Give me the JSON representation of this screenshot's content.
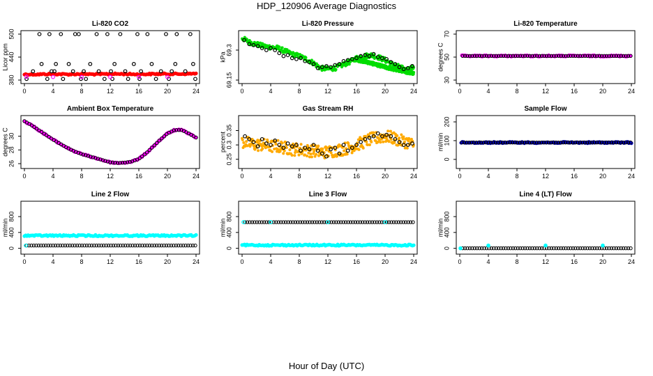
{
  "figure": {
    "title": "HDP_120906  Average Diagnostics",
    "xlabel": "Hour of Day (UTC)"
  },
  "chart_data": [
    {
      "type": "scatter",
      "title": "Li-820 CO2",
      "ylabel": "Licor ppm",
      "xlim": [
        0,
        24
      ],
      "xticks": [
        0,
        4,
        8,
        12,
        16,
        20,
        24
      ],
      "ylim": [
        380,
        500
      ],
      "yticks": [
        380,
        440,
        500
      ],
      "series": [
        {
          "name": "co2-dense",
          "color": "#ff0000",
          "style": "dense",
          "x": [
            0,
            2,
            4,
            6,
            8,
            10,
            12,
            14,
            16,
            18,
            20,
            22,
            24
          ],
          "y": [
            395,
            395,
            396,
            395,
            396,
            395,
            396,
            396,
            395,
            396,
            396,
            396,
            397
          ]
        },
        {
          "name": "co2-open",
          "color": "#000000",
          "style": "open",
          "x": [
            0.3,
            1.2,
            2.1,
            2.4,
            3.2,
            3.5,
            3.8,
            4.2,
            4.4,
            5.1,
            5.4,
            6.2,
            6.8,
            7.1,
            7.6,
            7.9,
            8.3,
            8.6,
            9.2,
            10.1,
            10.4,
            11.2,
            11.6,
            12.1,
            12.3,
            12.6,
            13.4,
            14.1,
            14.5,
            15.3,
            15.8,
            16.1,
            16.3,
            17.2,
            17.8,
            18.4,
            19.1,
            19.8,
            20.2,
            20.6,
            21.1,
            21.3,
            22.5,
            23.2,
            23.6,
            23.9
          ],
          "y": [
            383,
            403,
            500,
            422,
            383,
            500,
            403,
            403,
            422,
            500,
            383,
            422,
            403,
            500,
            500,
            383,
            403,
            383,
            422,
            500,
            403,
            383,
            500,
            403,
            383,
            422,
            500,
            403,
            383,
            422,
            500,
            383,
            403,
            500,
            422,
            383,
            403,
            500,
            383,
            403,
            422,
            500,
            403,
            500,
            422,
            383
          ]
        },
        {
          "name": "co2-magenta",
          "color": "#ff00ff",
          "style": "open",
          "x": [
            0.3,
            4.0,
            8.0,
            12.0,
            16.0,
            20.0
          ],
          "y": [
            389,
            388,
            388,
            388,
            388,
            388
          ]
        }
      ]
    },
    {
      "type": "scatter",
      "title": "Li-820 Pressure",
      "ylabel": "kPa",
      "xlim": [
        0,
        24
      ],
      "xticks": [
        0,
        4,
        8,
        12,
        16,
        20,
        24
      ],
      "ylim": [
        69.15,
        69.38
      ],
      "yticks": [
        69.15,
        69.3
      ],
      "series": [
        {
          "name": "pressure-band",
          "color": "#00dd00",
          "style": "band",
          "spread": 0.012,
          "x": [
            0,
            1,
            2,
            3,
            4,
            5,
            6,
            7,
            8,
            9,
            10,
            11,
            12,
            13,
            14,
            15,
            16,
            17,
            18,
            19,
            20,
            21,
            22,
            23,
            24
          ],
          "y": [
            69.36,
            69.34,
            69.33,
            69.32,
            69.315,
            69.31,
            69.295,
            69.28,
            69.27,
            69.255,
            69.235,
            69.21,
            69.205,
            69.21,
            69.225,
            69.24,
            69.26,
            69.27,
            69.275,
            69.265,
            69.25,
            69.23,
            69.215,
            69.2,
            69.215
          ]
        },
        {
          "name": "pressure-band-low",
          "color": "#00dd00",
          "style": "band",
          "spread": 0.008,
          "x": [
            16,
            17,
            18,
            19,
            20,
            21,
            22,
            23,
            24
          ],
          "y": [
            69.25,
            69.245,
            69.235,
            69.225,
            69.215,
            69.205,
            69.2,
            69.19,
            69.185
          ]
        },
        {
          "name": "pressure-avg",
          "color": "#000000",
          "style": "open",
          "x": [
            0.3,
            1.0,
            1.6,
            2.2,
            2.8,
            3.4,
            4.0,
            4.6,
            5.2,
            5.8,
            6.4,
            7.0,
            7.6,
            8.2,
            8.8,
            9.4,
            10.0,
            10.6,
            11.2,
            11.8,
            12.4,
            13.0,
            13.6,
            14.2,
            14.8,
            15.4,
            16.0,
            16.6,
            17.2,
            17.8,
            18.4,
            19.0,
            19.6,
            20.2,
            20.8,
            21.4,
            22.0,
            22.6,
            23.2,
            23.8
          ],
          "y": [
            69.35,
            69.33,
            69.325,
            69.32,
            69.31,
            69.3,
            69.31,
            69.3,
            69.285,
            69.27,
            69.275,
            69.26,
            69.255,
            69.26,
            69.245,
            69.24,
            69.23,
            69.21,
            69.215,
            69.22,
            69.215,
            69.225,
            69.23,
            69.245,
            69.25,
            69.255,
            69.26,
            69.27,
            69.275,
            69.27,
            69.28,
            69.265,
            69.26,
            69.255,
            69.24,
            69.23,
            69.215,
            69.205,
            69.21,
            69.22
          ]
        }
      ]
    },
    {
      "type": "scatter",
      "title": "Li-820 Temperature",
      "ylabel": "degrees C",
      "xlim": [
        0,
        24
      ],
      "xticks": [
        0,
        4,
        8,
        12,
        16,
        20,
        24
      ],
      "ylim": [
        30,
        70
      ],
      "yticks": [
        30,
        50,
        70
      ],
      "series": [
        {
          "name": "licor-temp-dense",
          "color": "#ff00ff",
          "style": "dense",
          "x": [
            0.3,
            23.9
          ],
          "y": [
            51,
            51
          ]
        },
        {
          "name": "licor-temp-avg",
          "color": "#000000",
          "style": "openline",
          "count": 70,
          "x": [
            0.4,
            23.9
          ],
          "y": [
            51,
            51
          ]
        }
      ]
    },
    {
      "type": "scatter",
      "title": "Ambient Box Temperature",
      "ylabel": "degrees C",
      "xlim": [
        0,
        24
      ],
      "xticks": [
        0,
        4,
        8,
        12,
        16,
        20,
        24
      ],
      "ylim": [
        25.8,
        32.5
      ],
      "yticks": [
        26,
        28,
        30
      ],
      "series": [
        {
          "name": "box-temp-dense",
          "color": "#ff00ff",
          "style": "dense",
          "x": [
            0,
            1,
            2,
            3,
            4,
            5,
            6,
            7,
            8,
            9,
            10,
            11,
            12,
            13,
            14,
            15,
            16,
            17,
            18,
            19,
            20,
            21,
            22,
            23,
            24
          ],
          "y": [
            32.2,
            31.6,
            30.9,
            30.2,
            29.5,
            28.9,
            28.3,
            27.8,
            27.4,
            27.1,
            26.8,
            26.5,
            26.2,
            26.1,
            26.15,
            26.3,
            26.7,
            27.5,
            28.5,
            29.5,
            30.4,
            30.9,
            30.9,
            30.4,
            29.8
          ]
        },
        {
          "name": "box-temp-avg",
          "color": "#000000",
          "style": "openline",
          "count": 70,
          "x": [
            0,
            1,
            2,
            3,
            4,
            5,
            6,
            7,
            8,
            9,
            10,
            11,
            12,
            13,
            14,
            15,
            16,
            17,
            18,
            19,
            20,
            21,
            22,
            23,
            24
          ],
          "y": [
            32.2,
            31.6,
            30.9,
            30.2,
            29.5,
            28.9,
            28.3,
            27.8,
            27.4,
            27.1,
            26.8,
            26.5,
            26.2,
            26.1,
            26.15,
            26.3,
            26.7,
            27.5,
            28.5,
            29.5,
            30.4,
            30.9,
            30.9,
            30.4,
            29.8
          ]
        }
      ]
    },
    {
      "type": "scatter",
      "title": "Gas Stream RH",
      "ylabel": "percent",
      "xlim": [
        0,
        24
      ],
      "xticks": [
        0,
        4,
        8,
        12,
        16,
        20,
        24
      ],
      "ylim": [
        0.23,
        0.39
      ],
      "yticks": [
        0.25,
        0.3,
        0.35
      ],
      "series": [
        {
          "name": "rh-band",
          "color": "#ffaa00",
          "style": "band",
          "spread": 0.022,
          "x": [
            0,
            1,
            2,
            3,
            4,
            5,
            6,
            7,
            8,
            9,
            10,
            11,
            12,
            13,
            14,
            15,
            16,
            17,
            18,
            19,
            20,
            21,
            22,
            23,
            24
          ],
          "y": [
            0.31,
            0.305,
            0.3,
            0.3,
            0.295,
            0.295,
            0.29,
            0.285,
            0.285,
            0.28,
            0.28,
            0.275,
            0.275,
            0.28,
            0.285,
            0.29,
            0.3,
            0.31,
            0.32,
            0.325,
            0.33,
            0.325,
            0.315,
            0.31,
            0.3
          ]
        },
        {
          "name": "rh-avg",
          "color": "#000000",
          "style": "open",
          "x": [
            0.4,
            1.0,
            1.6,
            2.2,
            2.8,
            3.4,
            4.0,
            4.6,
            5.2,
            5.8,
            6.4,
            7.0,
            7.6,
            8.2,
            8.8,
            9.4,
            10.0,
            10.6,
            11.2,
            11.8,
            12.4,
            13.0,
            13.6,
            14.2,
            14.8,
            15.4,
            16.0,
            16.6,
            17.2,
            17.8,
            18.4,
            19.0,
            19.6,
            20.2,
            20.8,
            21.4,
            22.0,
            22.6,
            23.2,
            23.8
          ],
          "y": [
            0.33,
            0.32,
            0.31,
            0.295,
            0.32,
            0.305,
            0.3,
            0.315,
            0.3,
            0.29,
            0.305,
            0.295,
            0.3,
            0.28,
            0.29,
            0.285,
            0.3,
            0.28,
            0.27,
            0.26,
            0.285,
            0.29,
            0.27,
            0.3,
            0.28,
            0.29,
            0.3,
            0.31,
            0.32,
            0.325,
            0.33,
            0.34,
            0.33,
            0.335,
            0.33,
            0.32,
            0.31,
            0.3,
            0.3,
            0.305
          ]
        }
      ]
    },
    {
      "type": "scatter",
      "title": "Sample Flow",
      "ylabel": "ml/min",
      "xlim": [
        0,
        24
      ],
      "xticks": [
        0,
        4,
        8,
        12,
        16,
        20,
        24
      ],
      "ylim": [
        -30,
        215
      ],
      "yticks": [
        0,
        100,
        200
      ],
      "series": [
        {
          "name": "sample-flow-dense",
          "color": "#0000cc",
          "style": "dense",
          "x": [
            0.2,
            24
          ],
          "y": [
            90,
            90
          ]
        },
        {
          "name": "sample-flow-avg",
          "color": "#000000",
          "style": "openline",
          "count": 70,
          "x": [
            0.3,
            23.9
          ],
          "y": [
            90,
            90
          ]
        }
      ]
    },
    {
      "type": "scatter",
      "title": "Line 2 Flow",
      "ylabel": "ml/min",
      "xlim": [
        0,
        24
      ],
      "xticks": [
        0,
        4,
        8,
        12,
        16,
        20,
        24
      ],
      "ylim": [
        -60,
        1100
      ],
      "yticks": [
        0,
        400,
        800
      ],
      "series": [
        {
          "name": "line2-flow-dense",
          "color": "#00ffff",
          "style": "dense",
          "x": [
            0,
            24
          ],
          "y": [
            320,
            320
          ]
        },
        {
          "name": "line2-flow-avg",
          "color": "#000000",
          "style": "openline",
          "count": 70,
          "x": [
            0.3,
            23.9
          ],
          "y": [
            70,
            70
          ]
        },
        {
          "name": "line2-flow-low",
          "color": "#00ffff",
          "style": "open",
          "x": [
            0.2
          ],
          "y": [
            70
          ]
        }
      ]
    },
    {
      "type": "scatter",
      "title": "Line 3 Flow",
      "ylabel": "ml/min",
      "xlim": [
        0,
        24
      ],
      "xticks": [
        0,
        4,
        8,
        12,
        16,
        20,
        24
      ],
      "ylim": [
        -60,
        1100
      ],
      "yticks": [
        0,
        400,
        800
      ],
      "series": [
        {
          "name": "line3-flow-dense",
          "color": "#00ffff",
          "style": "dense",
          "x": [
            0,
            24
          ],
          "y": [
            80,
            80
          ]
        },
        {
          "name": "line3-flow-avg",
          "color": "#000000",
          "style": "openline",
          "count": 70,
          "x": [
            0.4,
            23.9
          ],
          "y": [
            660,
            660
          ]
        },
        {
          "name": "line3-flow-start",
          "color": "#00ffff",
          "style": "open",
          "x": [
            0.2,
            4.0,
            12.0,
            20.0
          ],
          "y": [
            660,
            660,
            660,
            660
          ]
        }
      ]
    },
    {
      "type": "scatter",
      "title": "Line 4 (LT) Flow",
      "ylabel": "ml/min",
      "xlim": [
        0,
        24
      ],
      "xticks": [
        0,
        4,
        8,
        12,
        16,
        20,
        24
      ],
      "ylim": [
        -60,
        1100
      ],
      "yticks": [
        0,
        400,
        800
      ],
      "series": [
        {
          "name": "line4-flow-avg",
          "color": "#000000",
          "style": "openline",
          "count": 70,
          "x": [
            0.4,
            23.9
          ],
          "y": [
            0,
            0
          ]
        },
        {
          "name": "line4-flow-spikes",
          "color": "#00ffff",
          "style": "filled",
          "x": [
            0.1,
            4.0,
            12.0,
            20.0
          ],
          "y": [
            0,
            70,
            70,
            70
          ]
        }
      ]
    }
  ]
}
